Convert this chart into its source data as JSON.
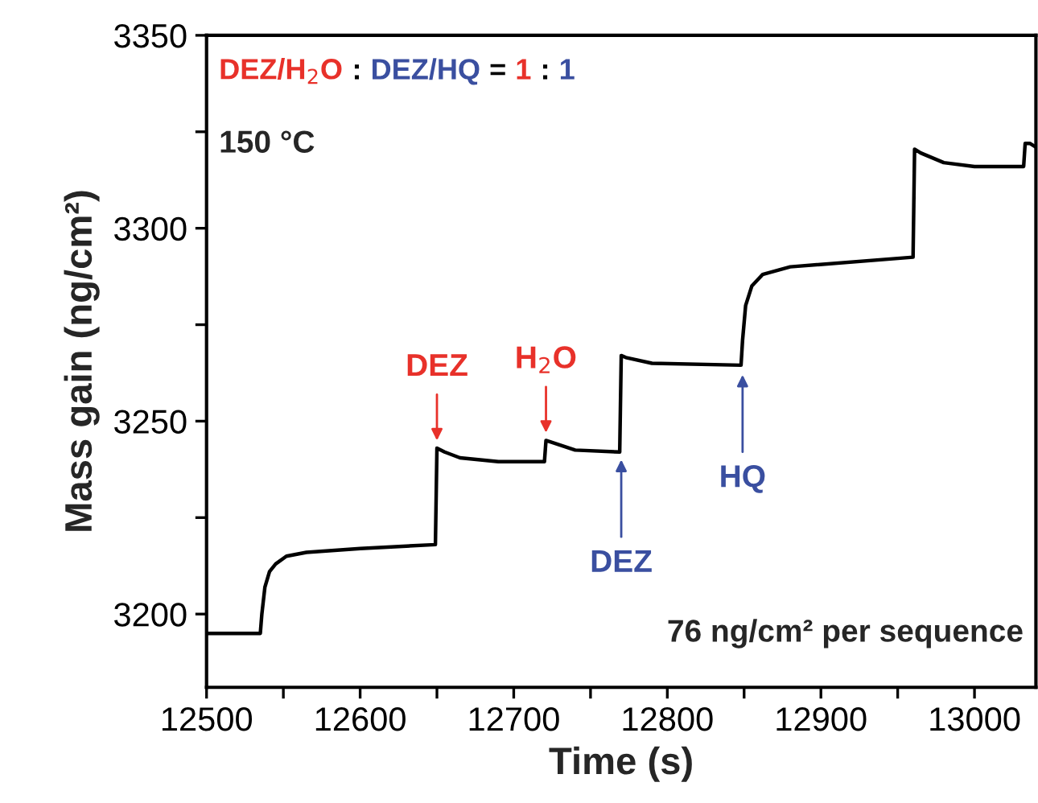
{
  "chart_data": {
    "type": "line",
    "xlabel": "Time (s)",
    "ylabel": "Mass gain (ng/cm²)",
    "xlim": [
      12500,
      13040
    ],
    "ylim": [
      3181,
      3350
    ],
    "xticks": [
      12500,
      {
        "value": 12550,
        "label": null
      },
      12600,
      {
        "value": 12650,
        "label": null
      },
      12700,
      {
        "value": 12750,
        "label": null
      },
      12800,
      {
        "value": 12850,
        "label": null
      },
      12900,
      {
        "value": 12950,
        "label": null
      },
      13000
    ],
    "yticks": [
      3200,
      {
        "value": 3225,
        "label": null
      },
      3250,
      {
        "value": 3275,
        "label": null
      },
      3300,
      {
        "value": 3325,
        "label": null
      },
      3350
    ],
    "grid": false,
    "marker": "none",
    "line_style": "solid",
    "series": [
      {
        "color": "#000000",
        "x": [
          12500,
          12535,
          12536,
          12538,
          12541,
          12545,
          12552,
          12565,
          12600,
          12649,
          12650,
          12655,
          12665,
          12690,
          12720,
          12721,
          12725,
          12740,
          12769,
          12770,
          12773,
          12790,
          12848,
          12849,
          12851,
          12855,
          12862,
          12880,
          12960,
          12961,
          12965,
          12980,
          13000,
          13032,
          13033,
          13036,
          13040
        ],
        "values": [
          3195,
          3195,
          3200,
          3207,
          3211,
          3213,
          3215,
          3216,
          3217,
          3218,
          3243,
          3242,
          3240.5,
          3239.5,
          3239.5,
          3245,
          3244.5,
          3242.5,
          3242,
          3267,
          3266.5,
          3265,
          3264.5,
          3271,
          3280,
          3285,
          3288,
          3290,
          3292.5,
          3320.5,
          3319.5,
          3317,
          3316,
          3316,
          3322,
          3322,
          3321
        ]
      }
    ],
    "annotations": [
      "DEZ/H$_{2}$O",
      ":",
      "DEZ/HQ",
      "=",
      "1",
      ":",
      "1",
      "150 °C",
      "76 ng/cm² per sequence",
      {
        "text": "DEZ",
        "x": 12650,
        "y": 3243
      },
      {
        "text": "H$_{2}$O",
        "x": 12721,
        "y": 3245
      },
      {
        "text": "DEZ",
        "x": 12770,
        "y": 3242
      },
      {
        "text": "HQ",
        "x": 12849,
        "y": 3264
      }
    ]
  }
}
